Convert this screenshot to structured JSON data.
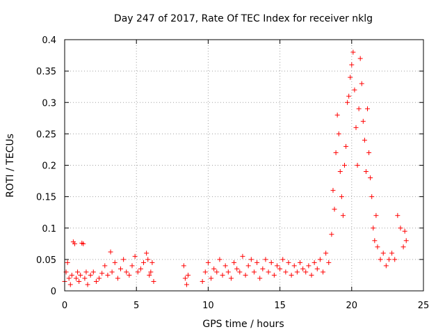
{
  "chart_data": {
    "type": "scatter",
    "title": "Day 247 of 2017, Rate Of TEC Index for receiver nklg",
    "xlabel": "GPS time / hours",
    "ylabel": "ROTI / TECUs",
    "xlim": [
      0,
      25
    ],
    "ylim": [
      0,
      0.4
    ],
    "xticks": [
      0,
      5,
      10,
      15,
      20,
      25
    ],
    "xtick_labels": [
      "0",
      "5",
      "10",
      "15",
      "20",
      "25"
    ],
    "yticks": [
      0,
      0.05,
      0.1,
      0.15,
      0.2,
      0.25,
      0.3,
      0.35,
      0.4
    ],
    "ytick_labels": [
      "0",
      "0.05",
      "0.1",
      "0.15",
      "0.2",
      "0.25",
      "0.3",
      "0.35",
      "0.4"
    ],
    "grid": true,
    "marker": "+",
    "color": "#ff0000",
    "series": [
      {
        "name": "ROTI",
        "points": [
          [
            0.0,
            0.015
          ],
          [
            0.1,
            0.03
          ],
          [
            0.2,
            0.045
          ],
          [
            0.3,
            0.02
          ],
          [
            0.4,
            0.01
          ],
          [
            0.5,
            0.025
          ],
          [
            0.6,
            0.078
          ],
          [
            0.7,
            0.075
          ],
          [
            0.8,
            0.02
          ],
          [
            0.9,
            0.03
          ],
          [
            1.0,
            0.015
          ],
          [
            1.1,
            0.025
          ],
          [
            1.2,
            0.076
          ],
          [
            1.3,
            0.075
          ],
          [
            1.4,
            0.02
          ],
          [
            1.5,
            0.03
          ],
          [
            1.6,
            0.01
          ],
          [
            1.8,
            0.025
          ],
          [
            2.0,
            0.03
          ],
          [
            2.2,
            0.015
          ],
          [
            2.4,
            0.02
          ],
          [
            2.6,
            0.028
          ],
          [
            2.8,
            0.04
          ],
          [
            3.0,
            0.025
          ],
          [
            3.2,
            0.062
          ],
          [
            3.3,
            0.03
          ],
          [
            3.5,
            0.045
          ],
          [
            3.7,
            0.02
          ],
          [
            3.9,
            0.035
          ],
          [
            4.1,
            0.05
          ],
          [
            4.3,
            0.03
          ],
          [
            4.5,
            0.025
          ],
          [
            4.7,
            0.04
          ],
          [
            4.9,
            0.055
          ],
          [
            5.1,
            0.03
          ],
          [
            5.3,
            0.035
          ],
          [
            5.5,
            0.045
          ],
          [
            5.7,
            0.06
          ],
          [
            5.8,
            0.05
          ],
          [
            5.9,
            0.025
          ],
          [
            6.0,
            0.03
          ],
          [
            6.1,
            0.045
          ],
          [
            6.2,
            0.015
          ],
          [
            8.3,
            0.04
          ],
          [
            8.4,
            0.02
          ],
          [
            8.5,
            0.01
          ],
          [
            8.6,
            0.025
          ],
          [
            9.6,
            0.015
          ],
          [
            9.8,
            0.03
          ],
          [
            10.0,
            0.045
          ],
          [
            10.2,
            0.02
          ],
          [
            10.4,
            0.035
          ],
          [
            10.6,
            0.03
          ],
          [
            10.8,
            0.05
          ],
          [
            11.0,
            0.025
          ],
          [
            11.2,
            0.04
          ],
          [
            11.4,
            0.03
          ],
          [
            11.6,
            0.02
          ],
          [
            11.8,
            0.045
          ],
          [
            12.0,
            0.035
          ],
          [
            12.2,
            0.03
          ],
          [
            12.4,
            0.055
          ],
          [
            12.6,
            0.025
          ],
          [
            12.8,
            0.04
          ],
          [
            13.0,
            0.05
          ],
          [
            13.2,
            0.03
          ],
          [
            13.4,
            0.045
          ],
          [
            13.6,
            0.02
          ],
          [
            13.8,
            0.035
          ],
          [
            14.0,
            0.05
          ],
          [
            14.2,
            0.03
          ],
          [
            14.4,
            0.045
          ],
          [
            14.6,
            0.025
          ],
          [
            14.8,
            0.04
          ],
          [
            15.0,
            0.035
          ],
          [
            15.2,
            0.05
          ],
          [
            15.4,
            0.03
          ],
          [
            15.6,
            0.045
          ],
          [
            15.8,
            0.025
          ],
          [
            16.0,
            0.04
          ],
          [
            16.2,
            0.03
          ],
          [
            16.4,
            0.045
          ],
          [
            16.6,
            0.035
          ],
          [
            16.8,
            0.03
          ],
          [
            17.0,
            0.04
          ],
          [
            17.2,
            0.025
          ],
          [
            17.4,
            0.045
          ],
          [
            17.6,
            0.035
          ],
          [
            17.8,
            0.05
          ],
          [
            18.0,
            0.03
          ],
          [
            18.2,
            0.06
          ],
          [
            18.4,
            0.045
          ],
          [
            18.6,
            0.09
          ],
          [
            18.7,
            0.16
          ],
          [
            18.8,
            0.13
          ],
          [
            18.9,
            0.22
          ],
          [
            19.0,
            0.28
          ],
          [
            19.1,
            0.25
          ],
          [
            19.2,
            0.19
          ],
          [
            19.3,
            0.15
          ],
          [
            19.4,
            0.12
          ],
          [
            19.5,
            0.2
          ],
          [
            19.6,
            0.23
          ],
          [
            19.7,
            0.3
          ],
          [
            19.8,
            0.31
          ],
          [
            19.9,
            0.34
          ],
          [
            20.0,
            0.36
          ],
          [
            20.1,
            0.38
          ],
          [
            20.2,
            0.32
          ],
          [
            20.3,
            0.26
          ],
          [
            20.4,
            0.2
          ],
          [
            20.5,
            0.29
          ],
          [
            20.6,
            0.37
          ],
          [
            20.7,
            0.33
          ],
          [
            20.8,
            0.27
          ],
          [
            20.9,
            0.24
          ],
          [
            21.0,
            0.19
          ],
          [
            21.1,
            0.29
          ],
          [
            21.2,
            0.22
          ],
          [
            21.3,
            0.18
          ],
          [
            21.4,
            0.15
          ],
          [
            21.5,
            0.1
          ],
          [
            21.6,
            0.08
          ],
          [
            21.7,
            0.12
          ],
          [
            21.8,
            0.07
          ],
          [
            22.0,
            0.05
          ],
          [
            22.2,
            0.06
          ],
          [
            22.4,
            0.04
          ],
          [
            22.6,
            0.05
          ],
          [
            22.8,
            0.06
          ],
          [
            23.0,
            0.05
          ],
          [
            23.2,
            0.12
          ],
          [
            23.4,
            0.1
          ],
          [
            23.6,
            0.07
          ],
          [
            23.7,
            0.095
          ],
          [
            23.8,
            0.08
          ]
        ]
      }
    ]
  }
}
